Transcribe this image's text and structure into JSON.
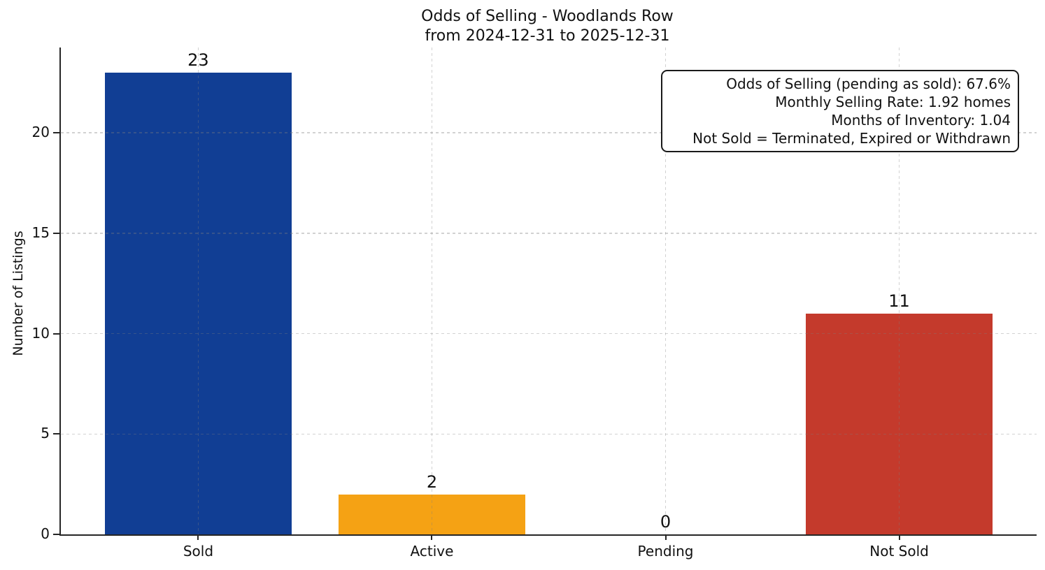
{
  "chart_data": {
    "type": "bar",
    "title": "Odds of Selling - Woodlands Row",
    "subtitle": "from 2024-12-31 to 2025-12-31",
    "ylabel": "Number of Listings",
    "categories": [
      "Sold",
      "Active",
      "Pending",
      "Not Sold"
    ],
    "values": [
      23,
      2,
      0,
      11
    ],
    "bar_colors": [
      "#113E94",
      "#F5A214",
      null,
      "#C43A2C"
    ],
    "ylim": [
      0,
      24.25
    ],
    "yticks": [
      0,
      5,
      10,
      15,
      20
    ],
    "grid": "dashed",
    "legend_position": "none",
    "annotation": {
      "lines": [
        "Odds of Selling (pending as sold): 67.6%",
        "Monthly Selling Rate: 1.92 homes",
        "Months of Inventory: 1.04",
        "Not Sold = Terminated, Expired or Withdrawn"
      ]
    }
  },
  "colors": {
    "axis": "#262626",
    "text": "#111111",
    "grid": "#7d7d7d",
    "annotation_border": "#1a1a1a",
    "background": "#ffffff"
  }
}
